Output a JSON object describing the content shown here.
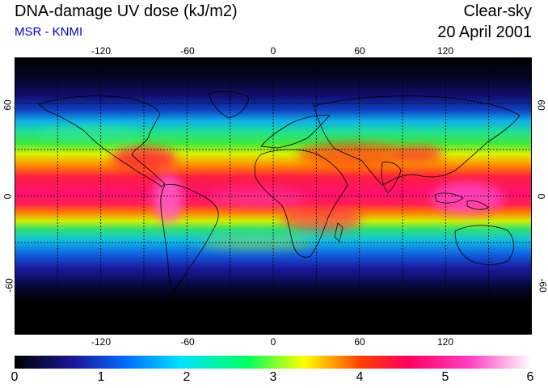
{
  "header": {
    "title": "DNA-damage UV dose (kJ/m2)",
    "subtitle": "MSR - KNMI",
    "sky_condition": "Clear-sky",
    "date": "20 April 2001"
  },
  "map": {
    "lon_range": [
      -180,
      180
    ],
    "lat_range": [
      -90,
      90
    ],
    "lon_ticks": [
      "-120",
      "-60",
      "0",
      "60",
      "120"
    ],
    "lat_ticks": [
      "60",
      "0",
      "-60"
    ],
    "gridlines": true
  },
  "colorbar": {
    "range": [
      0,
      6
    ],
    "labels": [
      "0",
      "1",
      "2",
      "3",
      "4",
      "5",
      "6"
    ],
    "stops": [
      "#000000",
      "#1a1aa0",
      "#0070ff",
      "#00e0ff",
      "#00ff60",
      "#ffff00",
      "#ff4000",
      "#ff0060",
      "#ff40c0",
      "#ffffff"
    ]
  }
}
